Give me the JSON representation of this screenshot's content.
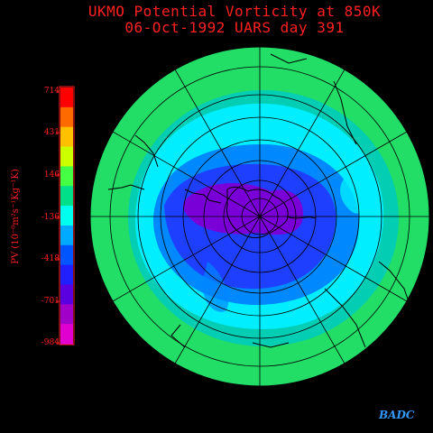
{
  "title": {
    "line1": "UKMO Potential Vorticity at 850K",
    "line2": "06-Oct-1992     UARS day  391"
  },
  "colorbar": {
    "label": "PV (10⁻⁶m²s⁻¹Kg⁻¹K)",
    "ticks": [
      "714",
      "431",
      "146",
      "-136",
      "-418",
      "-701",
      "-984"
    ],
    "colors": [
      "#ff0000",
      "#ff6a00",
      "#ffc000",
      "#ccff00",
      "#44ff44",
      "#00e08a",
      "#00ffee",
      "#00aaff",
      "#0055ff",
      "#2020ff",
      "#5a00e0",
      "#a000c8",
      "#e000d0"
    ]
  },
  "credit": "BADC",
  "map_colors": {
    "outer": "#22dd66",
    "ring": "#00ccbb",
    "cyan": "#00eeff",
    "mid": "#0088ff",
    "blue": "#1f3fff",
    "core": "#7a00d8"
  }
}
